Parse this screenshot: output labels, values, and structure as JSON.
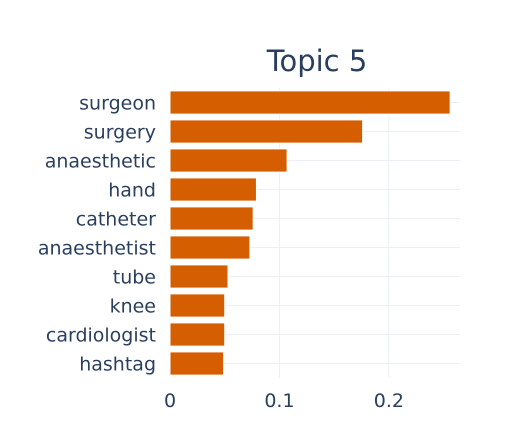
{
  "chart_data": {
    "type": "bar",
    "orientation": "horizontal",
    "title": "Topic 5",
    "xlabel": "",
    "ylabel": "",
    "categories": [
      "surgeon",
      "surgery",
      "anaesthetic",
      "hand",
      "catheter",
      "anaesthetist",
      "tube",
      "knee",
      "cardiologist",
      "hashtag"
    ],
    "values": [
      0.256,
      0.176,
      0.107,
      0.079,
      0.076,
      0.073,
      0.053,
      0.05,
      0.05,
      0.049
    ],
    "xlim": [
      0,
      0.265
    ],
    "xticks": [
      0,
      0.1,
      0.2
    ],
    "xtick_labels": [
      "0",
      "0.1",
      "0.2"
    ],
    "grid": true,
    "legend": "none",
    "colors": {
      "bar": "#d55e00",
      "text": "#2a3f5f",
      "grid": "#ebf0f8",
      "background": "#ffffff"
    }
  }
}
